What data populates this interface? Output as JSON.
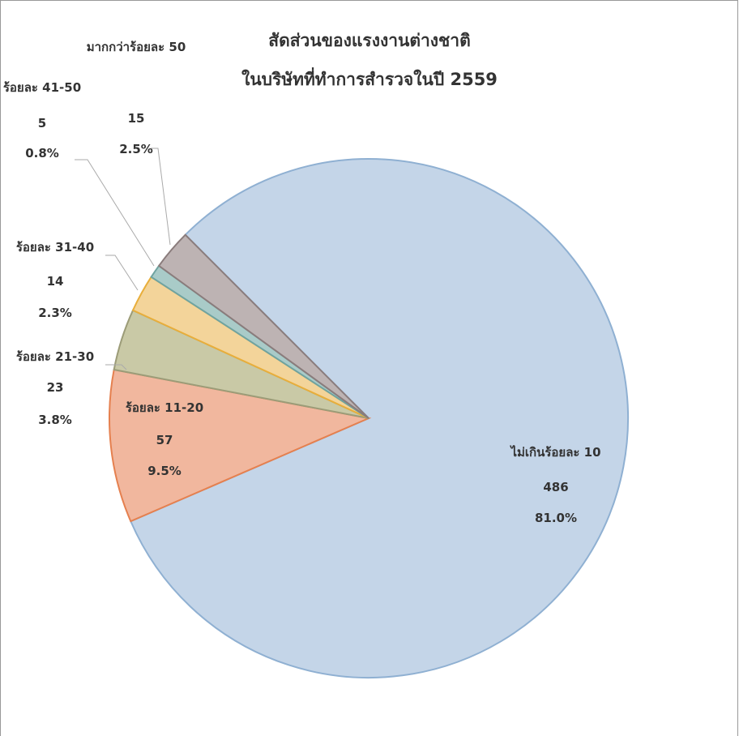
{
  "chart_data": {
    "type": "pie",
    "title": [
      "สัดส่วนของแรงงานต่างชาติ",
      "ในบริษัทที่ทำการสำรวจในปี 2559"
    ],
    "categories": [
      "ไม่เกินร้อยละ 10",
      "ร้อยละ 11-20",
      "ร้อยละ 21-30",
      "ร้อยละ 31-40",
      "ร้อยละ 41-50",
      "มากกว่าร้อยละ 50"
    ],
    "values": [
      486,
      57,
      23,
      14,
      5,
      15
    ],
    "percentages": [
      81,
      9.5,
      3.8,
      2.3,
      0.8,
      2.5
    ],
    "percent_labels": [
      "81.0%",
      "9.5%",
      "3.8%",
      "2.3%",
      "0.8%",
      "2.5%"
    ],
    "colors": [
      "#c4d5e8",
      "#f1b79e",
      "#c9c9a6",
      "#f3d49a",
      "#a9cbc8",
      "#bdb3b3"
    ],
    "edge_colors": [
      "#8fb0d2",
      "#e5804f",
      "#9c9c78",
      "#e8ae3b",
      "#6fa3a0",
      "#8a7c7c"
    ]
  }
}
